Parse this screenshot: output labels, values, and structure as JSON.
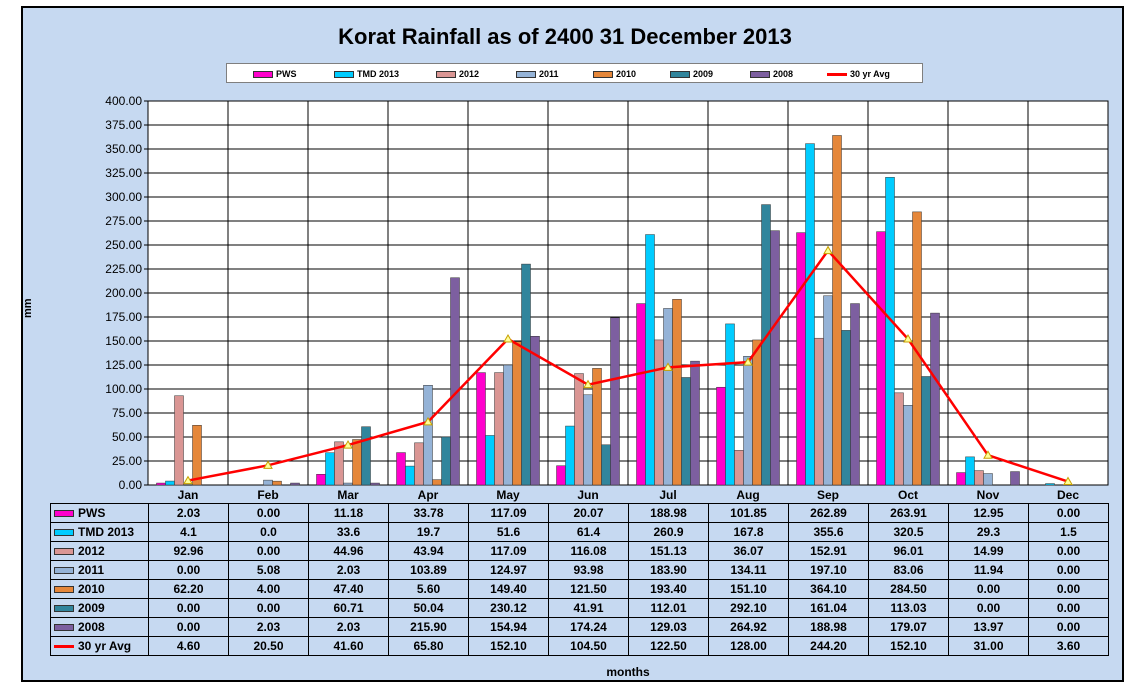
{
  "chart_data": {
    "type": "bar",
    "title": "Korat Rainfall as of 2400 31 December 2013",
    "xlabel": "months",
    "ylabel": "mm",
    "ylim": [
      0,
      400
    ],
    "yticks": [
      "0.00",
      "25.00",
      "50.00",
      "75.00",
      "100.00",
      "125.00",
      "150.00",
      "175.00",
      "200.00",
      "225.00",
      "250.00",
      "275.00",
      "300.00",
      "325.00",
      "350.00",
      "375.00",
      "400.00"
    ],
    "categories": [
      "Jan",
      "Feb",
      "Mar",
      "Apr",
      "May",
      "Jun",
      "Jul",
      "Aug",
      "Sep",
      "Oct",
      "Nov",
      "Dec"
    ],
    "grid": true,
    "legend_position": "top",
    "series": [
      {
        "name": "PWS",
        "kind": "bar",
        "color": "#ff00cc",
        "values": [
          2.03,
          0.0,
          11.18,
          33.78,
          117.09,
          20.07,
          188.98,
          101.85,
          262.89,
          263.91,
          12.95,
          0.0
        ],
        "labels": [
          "2.03",
          "0.00",
          "11.18",
          "33.78",
          "117.09",
          "20.07",
          "188.98",
          "101.85",
          "262.89",
          "263.91",
          "12.95",
          "0.00"
        ]
      },
      {
        "name": "TMD 2013",
        "kind": "bar",
        "color": "#00ccff",
        "values": [
          4.1,
          0.0,
          33.6,
          19.7,
          51.6,
          61.4,
          260.9,
          167.8,
          355.6,
          320.5,
          29.3,
          1.5
        ],
        "labels": [
          "4.1",
          "0.0",
          "33.6",
          "19.7",
          "51.6",
          "61.4",
          "260.9",
          "167.8",
          "355.6",
          "320.5",
          "29.3",
          "1.5"
        ]
      },
      {
        "name": "2012",
        "kind": "bar",
        "color": "#da9694",
        "values": [
          92.96,
          0.0,
          44.96,
          43.94,
          117.09,
          116.08,
          151.13,
          36.07,
          152.91,
          96.01,
          14.99,
          0.0
        ],
        "labels": [
          "92.96",
          "0.00",
          "44.96",
          "43.94",
          "117.09",
          "116.08",
          "151.13",
          "36.07",
          "152.91",
          "96.01",
          "14.99",
          "0.00"
        ]
      },
      {
        "name": "2011",
        "kind": "bar",
        "color": "#95b3d7",
        "values": [
          0.0,
          5.08,
          2.03,
          103.89,
          124.97,
          93.98,
          183.9,
          134.11,
          197.1,
          83.06,
          11.94,
          0.0
        ],
        "labels": [
          "0.00",
          "5.08",
          "2.03",
          "103.89",
          "124.97",
          "93.98",
          "183.90",
          "134.11",
          "197.10",
          "83.06",
          "11.94",
          "0.00"
        ]
      },
      {
        "name": "2010",
        "kind": "bar",
        "color": "#e5873a",
        "values": [
          62.2,
          4.0,
          47.4,
          5.6,
          149.4,
          121.5,
          193.4,
          151.1,
          364.1,
          284.5,
          0.0,
          0.0
        ],
        "labels": [
          "62.20",
          "4.00",
          "47.40",
          "5.60",
          "149.40",
          "121.50",
          "193.40",
          "151.10",
          "364.10",
          "284.50",
          "0.00",
          "0.00"
        ]
      },
      {
        "name": "2009",
        "kind": "bar",
        "color": "#31859c",
        "values": [
          0.0,
          0.0,
          60.71,
          50.04,
          230.12,
          41.91,
          112.01,
          292.1,
          161.04,
          113.03,
          0.0,
          0.0
        ],
        "labels": [
          "0.00",
          "0.00",
          "60.71",
          "50.04",
          "230.12",
          "41.91",
          "112.01",
          "292.10",
          "161.04",
          "113.03",
          "0.00",
          "0.00"
        ]
      },
      {
        "name": "2008",
        "kind": "bar",
        "color": "#7d5fa0",
        "values": [
          0.0,
          2.03,
          2.03,
          215.9,
          154.94,
          174.24,
          129.03,
          264.92,
          188.98,
          179.07,
          13.97,
          0.0
        ],
        "labels": [
          "0.00",
          "2.03",
          "2.03",
          "215.90",
          "154.94",
          "174.24",
          "129.03",
          "264.92",
          "188.98",
          "179.07",
          "13.97",
          "0.00"
        ]
      },
      {
        "name": "30 yr Avg",
        "kind": "line",
        "color": "#ff0000",
        "marker_color": "#c8a000",
        "values": [
          4.6,
          20.5,
          41.6,
          65.8,
          152.1,
          104.5,
          122.5,
          128.0,
          244.2,
          152.1,
          31.0,
          3.6
        ],
        "labels": [
          "4.60",
          "20.50",
          "41.60",
          "65.80",
          "152.10",
          "104.50",
          "122.50",
          "128.00",
          "244.20",
          "152.10",
          "31.00",
          "3.60"
        ]
      }
    ]
  }
}
